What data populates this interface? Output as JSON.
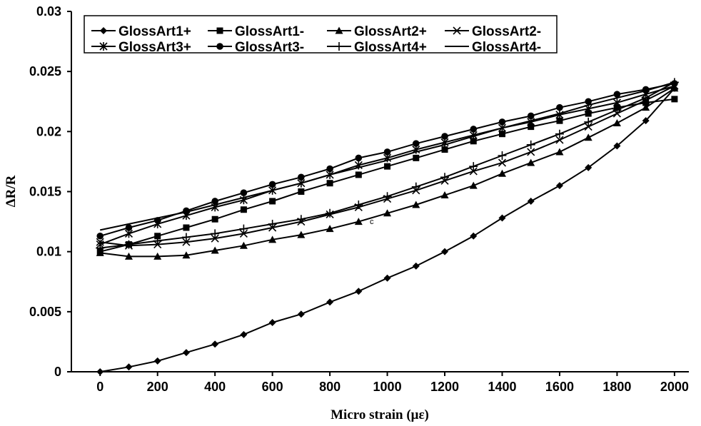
{
  "chart_data": {
    "type": "line",
    "title": "",
    "xlabel": "Micro strain (με)",
    "ylabel": "ΔR/R",
    "xlim": [
      -100,
      2050
    ],
    "ylim": [
      0,
      0.03
    ],
    "x_ticks": [
      "0",
      "200",
      "400",
      "600",
      "800",
      "1000",
      "1200",
      "1400",
      "1600",
      "1800",
      "2000"
    ],
    "y_ticks": [
      "0",
      "0.005",
      "0.01",
      "0.015",
      "0.02",
      "0.025",
      "0.03"
    ],
    "grid": false,
    "legend_position": "top-left",
    "annotation": "c",
    "x": [
      0,
      100,
      200,
      300,
      400,
      500,
      600,
      700,
      800,
      900,
      1000,
      1100,
      1200,
      1300,
      1400,
      1500,
      1600,
      1700,
      1800,
      1900,
      2000
    ],
    "series": [
      {
        "name": "GlossArt1+",
        "marker": "diamond",
        "values": [
          0,
          0.0004,
          0.0009,
          0.0016,
          0.0023,
          0.0031,
          0.0041,
          0.0048,
          0.0058,
          0.0067,
          0.0078,
          0.0088,
          0.01,
          0.0113,
          0.0128,
          0.0142,
          0.0155,
          0.017,
          0.0188,
          0.0209,
          0.0236
        ]
      },
      {
        "name": "GlossArt1-",
        "marker": "square",
        "values": [
          0.01,
          0.0106,
          0.0113,
          0.012,
          0.0127,
          0.0135,
          0.0142,
          0.015,
          0.0157,
          0.0164,
          0.0171,
          0.0178,
          0.0185,
          0.0192,
          0.0198,
          0.0204,
          0.0209,
          0.0215,
          0.022,
          0.0224,
          0.0227
        ]
      },
      {
        "name": "GlossArt2+",
        "marker": "triangle",
        "values": [
          0.0099,
          0.0096,
          0.0096,
          0.0097,
          0.0101,
          0.0105,
          0.011,
          0.0114,
          0.0119,
          0.0125,
          0.0132,
          0.0139,
          0.0147,
          0.0155,
          0.0165,
          0.0174,
          0.0183,
          0.0195,
          0.0207,
          0.022,
          0.0236
        ]
      },
      {
        "name": "GlossArt2-",
        "marker": "x",
        "values": [
          0.0108,
          0.0105,
          0.0106,
          0.0108,
          0.0111,
          0.0115,
          0.012,
          0.0125,
          0.0131,
          0.0137,
          0.0144,
          0.0151,
          0.0159,
          0.0167,
          0.0174,
          0.0183,
          0.0193,
          0.0204,
          0.0215,
          0.0226,
          0.0238
        ]
      },
      {
        "name": "GlossArt3+",
        "marker": "star",
        "values": [
          0.0106,
          0.0115,
          0.0123,
          0.013,
          0.0137,
          0.0143,
          0.0151,
          0.0157,
          0.0164,
          0.0172,
          0.0178,
          0.0185,
          0.0191,
          0.0197,
          0.0203,
          0.0208,
          0.0214,
          0.0219,
          0.0224,
          0.0231,
          0.0238
        ]
      },
      {
        "name": "GlossArt3-",
        "marker": "circle",
        "values": [
          0.0113,
          0.012,
          0.0126,
          0.0134,
          0.0142,
          0.0149,
          0.0156,
          0.0162,
          0.0169,
          0.0178,
          0.0183,
          0.019,
          0.0196,
          0.0202,
          0.0208,
          0.0213,
          0.022,
          0.0225,
          0.0231,
          0.0235,
          0.024
        ]
      },
      {
        "name": "GlossArt4+",
        "marker": "plus",
        "values": [
          0.0103,
          0.0106,
          0.0109,
          0.0112,
          0.0115,
          0.0119,
          0.0123,
          0.0127,
          0.0132,
          0.0139,
          0.0146,
          0.0154,
          0.0162,
          0.0171,
          0.018,
          0.0189,
          0.0198,
          0.0208,
          0.0218,
          0.0228,
          0.0241
        ]
      },
      {
        "name": "GlossArt4-",
        "marker": "none",
        "values": [
          0.0118,
          0.0123,
          0.0128,
          0.0133,
          0.0139,
          0.0145,
          0.0151,
          0.0157,
          0.0164,
          0.017,
          0.0176,
          0.0183,
          0.0189,
          0.0196,
          0.0203,
          0.0209,
          0.0215,
          0.0222,
          0.0228,
          0.0234,
          0.0241
        ]
      }
    ]
  }
}
